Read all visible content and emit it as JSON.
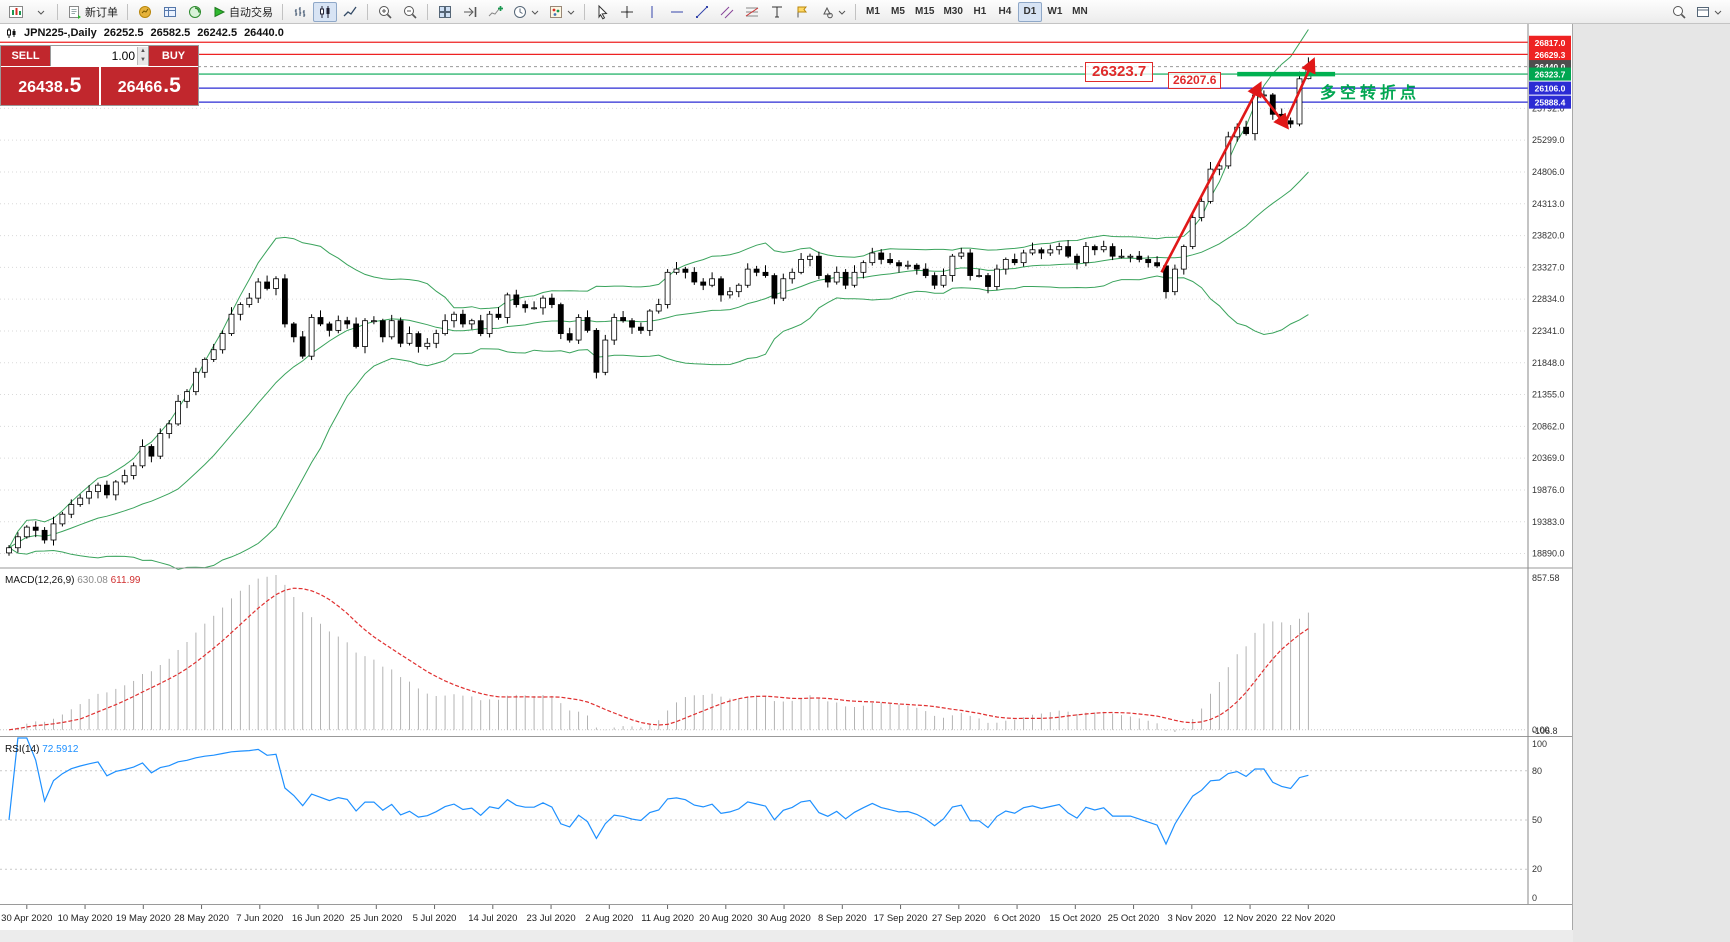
{
  "toolbar": {
    "new_order_label": "新订单",
    "autotrading_label": "自动交易",
    "timeframes": [
      "M1",
      "M5",
      "M15",
      "M30",
      "H1",
      "H4",
      "D1",
      "W1",
      "MN"
    ],
    "active_timeframe": "D1"
  },
  "chart_title": {
    "symbol_period": "JPN225-,Daily",
    "open": "26252.5",
    "high": "26582.5",
    "low": "26242.5",
    "close": "26440.0"
  },
  "one_click": {
    "sell_label": "SELL",
    "buy_label": "BUY",
    "volume": "1.00",
    "bid_main": "26438",
    "bid_frac": ".5",
    "ask_main": "26466",
    "ask_frac": ".5"
  },
  "annotations": {
    "level_label_main": "26323.7",
    "level_label_secondary": "26207.6",
    "turning_point_text": "多空转折点"
  },
  "price_axis": {
    "tags": [
      {
        "text": "26817.0",
        "price": 26817.0,
        "bg": "#ee2222"
      },
      {
        "text": "26629.3",
        "price": 26629.3,
        "bg": "#ee2222"
      },
      {
        "text": "26440.0",
        "price": 26440.0,
        "bg": "#4d4d4d"
      },
      {
        "text": "26323.7",
        "price": 26323.7,
        "bg": "#00a651"
      },
      {
        "text": "26106.0",
        "price": 26106.0,
        "bg": "#2b2bd4"
      },
      {
        "text": "25888.4",
        "price": 25888.4,
        "bg": "#2b2bd4"
      }
    ],
    "gridline_labels": [
      "25792.0",
      "25299.0",
      "24806.0",
      "24313.0",
      "23820.0",
      "23327.0",
      "22834.0",
      "22341.0",
      "21848.0",
      "21355.0",
      "20862.0",
      "20369.0",
      "19876.0",
      "19383.0",
      "18890.0"
    ]
  },
  "macd": {
    "label": "MACD(12,26,9)",
    "value_main": "630.08",
    "value_signal": "611.99",
    "fast": 12,
    "slow": 26,
    "signal": 9,
    "axis": [
      "857.58",
      "0.00",
      "-106.8"
    ]
  },
  "rsi": {
    "label": "RSI(14)",
    "value": "72.5912",
    "period": 14,
    "axis_top": "100",
    "axis_bottom": "0",
    "levels": [
      80,
      50,
      20
    ]
  },
  "chart_data": {
    "type": "candlestick",
    "symbol": "JPN225-",
    "period": "Daily",
    "current_price": 26440.0,
    "y_axis": {
      "max": 27100,
      "min": 18697,
      "gridlines": [
        25792,
        25299,
        24806,
        24313,
        23820,
        23327,
        22834,
        22341,
        21848,
        21355,
        20862,
        20369,
        19876,
        19383,
        18890
      ]
    },
    "x_axis_dates": [
      "30 Apr 2020",
      "10 May 2020",
      "19 May 2020",
      "28 May 2020",
      "7 Jun 2020",
      "16 Jun 2020",
      "25 Jun 2020",
      "5 Jul 2020",
      "14 Jul 2020",
      "23 Jul 2020",
      "2 Aug 2020",
      "11 Aug 2020",
      "20 Aug 2020",
      "30 Aug 2020",
      "8 Sep 2020",
      "17 Sep 2020",
      "27 Sep 2020",
      "6 Oct 2020",
      "15 Oct 2020",
      "25 Oct 2020",
      "3 Nov 2020",
      "12 Nov 2020",
      "22 Nov 2020"
    ],
    "overlays": {
      "bollinger": {
        "period": 20,
        "deviation": 2,
        "color": "#3aa35c"
      }
    },
    "horizontal_lines": [
      {
        "price": 26817.0,
        "color": "#ee2222"
      },
      {
        "price": 26629.3,
        "color": "#ee2222"
      },
      {
        "price": 26323.7,
        "color": "#00a651"
      },
      {
        "price": 26106.0,
        "color": "#2b2bd4"
      },
      {
        "price": 25888.4,
        "color": "#2b2bd4"
      }
    ],
    "highlight_segment": {
      "price": 26323.7,
      "x1_bar": 138,
      "x2_bar": 149,
      "color": "#00b050",
      "width": 4.5
    },
    "trend_arrows": [
      {
        "x1_bar": 129.5,
        "p1": 23250,
        "x2_bar": 140.5,
        "p2": 26150,
        "color": "#e01818"
      },
      {
        "x1_bar": 140.5,
        "p1": 26050,
        "x2_bar": 143.5,
        "p2": 25520,
        "color": "#e01818"
      },
      {
        "x1_bar": 143.5,
        "p1": 25600,
        "x2_bar": 146.5,
        "p2": 26520,
        "color": "#e01818"
      }
    ],
    "ohlc": [
      [
        18900,
        19020,
        18855,
        18980
      ],
      [
        18980,
        19220,
        18905,
        19150
      ],
      [
        19150,
        19330,
        19120,
        19300
      ],
      [
        19300,
        19390,
        19145,
        19250
      ],
      [
        19250,
        19300,
        19045,
        19100
      ],
      [
        19100,
        19460,
        19015,
        19350
      ],
      [
        19350,
        19535,
        19310,
        19500
      ],
      [
        19500,
        19730,
        19440,
        19650
      ],
      [
        19650,
        19810,
        19615,
        19750
      ],
      [
        19750,
        19950,
        19655,
        19850
      ],
      [
        19850,
        19990,
        19745,
        19950
      ],
      [
        19950,
        20020,
        19745,
        19800
      ],
      [
        19800,
        20030,
        19715,
        20000
      ],
      [
        20000,
        20190,
        19960,
        20100
      ],
      [
        20100,
        20300,
        20040,
        20250
      ],
      [
        20250,
        20660,
        20215,
        20550
      ],
      [
        20550,
        20585,
        20305,
        20400
      ],
      [
        20400,
        20830,
        20355,
        20750
      ],
      [
        20750,
        20960,
        20675,
        20900
      ],
      [
        20900,
        21350,
        20870,
        21250
      ],
      [
        21250,
        21440,
        21145,
        21400
      ],
      [
        21400,
        21770,
        21345,
        21700
      ],
      [
        21700,
        21930,
        21615,
        21900
      ],
      [
        21900,
        22140,
        21860,
        22050
      ],
      [
        22050,
        22350,
        21990,
        22300
      ],
      [
        22300,
        22710,
        22265,
        22600
      ],
      [
        22600,
        22785,
        22505,
        22750
      ],
      [
        22750,
        22930,
        22705,
        22850
      ],
      [
        22850,
        23160,
        22775,
        23100
      ],
      [
        23100,
        23200,
        22970,
        23000
      ],
      [
        23000,
        23190,
        22895,
        23150
      ],
      [
        23150,
        23220,
        22395,
        22450
      ],
      [
        22450,
        22480,
        22165,
        22250
      ],
      [
        22250,
        22340,
        21910,
        21950
      ],
      [
        21950,
        22600,
        21890,
        22550
      ],
      [
        22550,
        22660,
        22415,
        22450
      ],
      [
        22450,
        22485,
        22255,
        22350
      ],
      [
        22350,
        22580,
        22305,
        22500
      ],
      [
        22500,
        22560,
        22375,
        22450
      ],
      [
        22450,
        22550,
        22070,
        22100
      ],
      [
        22100,
        22540,
        21995,
        22500
      ],
      [
        22500,
        22570,
        22445,
        22500
      ],
      [
        22500,
        22530,
        22165,
        22250
      ],
      [
        22250,
        22590,
        22210,
        22500
      ],
      [
        22500,
        22550,
        22090,
        22150
      ],
      [
        22150,
        22410,
        22115,
        22300
      ],
      [
        22300,
        22335,
        22005,
        22100
      ],
      [
        22100,
        22230,
        22055,
        22150
      ],
      [
        22150,
        22360,
        22075,
        22300
      ],
      [
        22300,
        22600,
        22270,
        22500
      ],
      [
        22500,
        22640,
        22395,
        22600
      ],
      [
        22600,
        22670,
        22395,
        22450
      ],
      [
        22450,
        22530,
        22365,
        22500
      ],
      [
        22500,
        22590,
        22260,
        22300
      ],
      [
        22300,
        22650,
        22240,
        22600
      ],
      [
        22600,
        22710,
        22515,
        22550
      ],
      [
        22550,
        22935,
        22455,
        22900
      ],
      [
        22900,
        22980,
        22705,
        22750
      ],
      [
        22750,
        22810,
        22625,
        22700
      ],
      [
        22700,
        22800,
        22670,
        22700
      ],
      [
        22700,
        22890,
        22595,
        22850
      ],
      [
        22850,
        22920,
        22695,
        22750
      ],
      [
        22750,
        22780,
        22215,
        22300
      ],
      [
        22300,
        22390,
        22160,
        22200
      ],
      [
        22200,
        22600,
        22140,
        22550
      ],
      [
        22550,
        22660,
        22315,
        22350
      ],
      [
        22350,
        22385,
        21605,
        21700
      ],
      [
        21700,
        22280,
        21655,
        22200
      ],
      [
        22200,
        22610,
        22125,
        22550
      ],
      [
        22550,
        22650,
        22470,
        22500
      ],
      [
        22500,
        22540,
        22295,
        22400
      ],
      [
        22400,
        22470,
        22295,
        22350
      ],
      [
        22350,
        22680,
        22265,
        22650
      ],
      [
        22650,
        22840,
        22610,
        22750
      ],
      [
        22750,
        23300,
        22690,
        23250
      ],
      [
        23250,
        23410,
        23215,
        23300
      ],
      [
        23300,
        23335,
        23155,
        23250
      ],
      [
        23250,
        23330,
        23055,
        23100
      ],
      [
        23100,
        23160,
        22975,
        23050
      ],
      [
        23050,
        23250,
        23020,
        23150
      ],
      [
        23150,
        23190,
        22795,
        22900
      ],
      [
        22900,
        23020,
        22845,
        22950
      ],
      [
        22950,
        23080,
        22865,
        23050
      ],
      [
        23050,
        23390,
        23010,
        23300
      ],
      [
        23300,
        23350,
        23190,
        23250
      ],
      [
        23250,
        23360,
        23165,
        23200
      ],
      [
        23200,
        23235,
        22755,
        22850
      ],
      [
        22850,
        23230,
        22805,
        23150
      ],
      [
        23150,
        23310,
        23075,
        23250
      ],
      [
        23250,
        23550,
        23220,
        23450
      ],
      [
        23450,
        23540,
        23345,
        23500
      ],
      [
        23500,
        23570,
        23145,
        23200
      ],
      [
        23200,
        23230,
        23015,
        23100
      ],
      [
        23100,
        23340,
        23060,
        23250
      ],
      [
        23250,
        23300,
        22990,
        23050
      ],
      [
        23050,
        23360,
        23015,
        23250
      ],
      [
        23250,
        23435,
        23155,
        23400
      ],
      [
        23400,
        23630,
        23355,
        23550
      ],
      [
        23550,
        23610,
        23375,
        23450
      ],
      [
        23450,
        23550,
        23370,
        23400
      ],
      [
        23400,
        23440,
        23245,
        23350
      ],
      [
        23350,
        23430,
        23295,
        23360
      ],
      [
        23360,
        23390,
        23215,
        23300
      ],
      [
        23300,
        23390,
        23160,
        23200
      ],
      [
        23200,
        23250,
        22990,
        23050
      ],
      [
        23050,
        23310,
        23015,
        23200
      ],
      [
        23200,
        23535,
        23105,
        23500
      ],
      [
        23500,
        23630,
        23455,
        23550
      ],
      [
        23550,
        23610,
        23125,
        23200
      ],
      [
        23200,
        23300,
        23170,
        23200
      ],
      [
        23200,
        23240,
        22925,
        23030
      ],
      [
        23030,
        23370,
        22975,
        23300
      ],
      [
        23300,
        23480,
        23215,
        23450
      ],
      [
        23450,
        23540,
        23360,
        23400
      ],
      [
        23400,
        23600,
        23340,
        23550
      ],
      [
        23550,
        23710,
        23515,
        23600
      ],
      [
        23600,
        23635,
        23455,
        23550
      ],
      [
        23550,
        23680,
        23505,
        23600
      ],
      [
        23600,
        23710,
        23525,
        23650
      ],
      [
        23650,
        23750,
        23470,
        23500
      ],
      [
        23500,
        23540,
        23295,
        23400
      ],
      [
        23400,
        23720,
        23345,
        23650
      ],
      [
        23650,
        23680,
        23515,
        23600
      ],
      [
        23600,
        23740,
        23560,
        23650
      ],
      [
        23650,
        23700,
        23440,
        23500
      ],
      [
        23500,
        23610,
        23465,
        23500
      ],
      [
        23500,
        23535,
        23405,
        23500
      ],
      [
        23500,
        23580,
        23405,
        23450
      ],
      [
        23450,
        23510,
        23325,
        23400
      ],
      [
        23400,
        23500,
        23320,
        23350
      ],
      [
        23350,
        23390,
        22845,
        22950
      ],
      [
        22950,
        23370,
        22895,
        23300
      ],
      [
        23300,
        23680,
        23215,
        23650
      ],
      [
        23650,
        24190,
        23610,
        24100
      ],
      [
        24100,
        24400,
        24040,
        24350
      ],
      [
        24350,
        24960,
        24315,
        24850
      ],
      [
        24850,
        24935,
        24755,
        24900
      ],
      [
        24900,
        25430,
        24855,
        25350
      ],
      [
        25350,
        25560,
        25275,
        25500
      ],
      [
        25500,
        25600,
        25370,
        25400
      ],
      [
        25400,
        26040,
        25295,
        26000
      ],
      [
        26000,
        26070,
        25945,
        26000
      ],
      [
        26000,
        26030,
        25615,
        25700
      ],
      [
        25700,
        25790,
        25560,
        25600
      ],
      [
        25600,
        25650,
        25490,
        25550
      ],
      [
        25550,
        26360,
        25515,
        26250
      ],
      [
        26252.5,
        26582.5,
        26242.5,
        26440
      ]
    ]
  }
}
